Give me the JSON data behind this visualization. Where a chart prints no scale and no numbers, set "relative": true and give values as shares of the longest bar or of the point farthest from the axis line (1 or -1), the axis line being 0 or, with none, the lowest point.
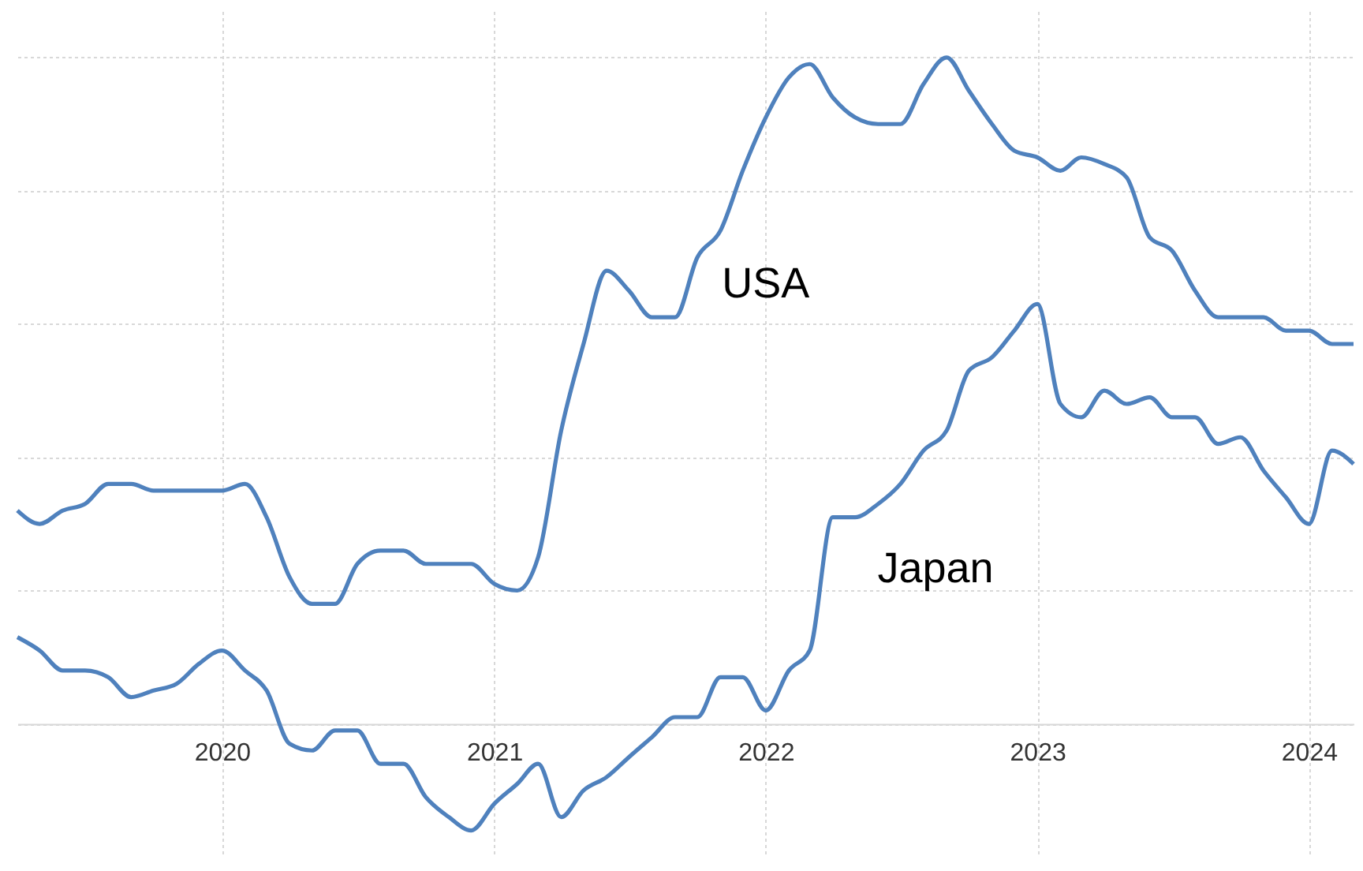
{
  "chart_data": {
    "type": "line",
    "relative": true,
    "grid": true,
    "line_style": "solid",
    "marker": "none",
    "x": [
      "2019-04",
      "2019-05",
      "2019-06",
      "2019-07",
      "2019-08",
      "2019-09",
      "2019-10",
      "2019-11",
      "2019-12",
      "2020-01",
      "2020-02",
      "2020-03",
      "2020-04",
      "2020-05",
      "2020-06",
      "2020-07",
      "2020-08",
      "2020-09",
      "2020-10",
      "2020-11",
      "2020-12",
      "2021-01",
      "2021-02",
      "2021-03",
      "2021-04",
      "2021-05",
      "2021-06",
      "2021-07",
      "2021-08",
      "2021-09",
      "2021-10",
      "2021-11",
      "2021-12",
      "2022-01",
      "2022-02",
      "2022-03",
      "2022-04",
      "2022-05",
      "2022-06",
      "2022-07",
      "2022-08",
      "2022-09",
      "2022-10",
      "2022-11",
      "2022-12",
      "2023-01",
      "2023-02",
      "2023-03",
      "2023-04",
      "2023-05",
      "2023-06",
      "2023-07",
      "2023-08",
      "2023-09",
      "2023-10",
      "2023-11",
      "2023-12",
      "2024-01",
      "2024-02",
      "2024-03"
    ],
    "xlim": [
      "2019-04",
      "2024-03"
    ],
    "xticks": [
      {
        "value": "2020",
        "label": "2020"
      },
      {
        "value": "2021",
        "label": "2021"
      },
      {
        "value": "2022",
        "label": "2022"
      },
      {
        "value": "2023",
        "label": "2023"
      },
      {
        "value": "2024",
        "label": "2024"
      }
    ],
    "series": [
      {
        "name": "USA",
        "color": "#4f81bd",
        "values": [
          0.32,
          0.3,
          0.32,
          0.33,
          0.36,
          0.36,
          0.35,
          0.35,
          0.35,
          0.35,
          0.36,
          0.31,
          0.22,
          0.18,
          0.18,
          0.24,
          0.26,
          0.26,
          0.24,
          0.24,
          0.24,
          0.21,
          0.2,
          0.25,
          0.44,
          0.57,
          0.68,
          0.65,
          0.61,
          0.61,
          0.7,
          0.74,
          0.83,
          0.91,
          0.97,
          0.99,
          0.94,
          0.91,
          0.9,
          0.9,
          0.96,
          1.0,
          0.95,
          0.9,
          0.86,
          0.85,
          0.83,
          0.85,
          0.84,
          0.82,
          0.73,
          0.71,
          0.65,
          0.61,
          0.61,
          0.61,
          0.59,
          0.59,
          0.57,
          0.57
        ]
      },
      {
        "name": "Japan",
        "color": "#4f81bd",
        "values": [
          0.13,
          0.11,
          0.08,
          0.08,
          0.07,
          0.04,
          0.05,
          0.06,
          0.09,
          0.11,
          0.08,
          0.05,
          -0.03,
          -0.04,
          -0.01,
          -0.01,
          -0.06,
          -0.06,
          -0.11,
          -0.14,
          -0.16,
          -0.12,
          -0.09,
          -0.06,
          -0.14,
          -0.1,
          -0.08,
          -0.05,
          -0.02,
          0.01,
          0.01,
          0.07,
          0.07,
          0.02,
          0.08,
          0.11,
          0.31,
          0.31,
          0.33,
          0.36,
          0.41,
          0.44,
          0.53,
          0.55,
          0.59,
          0.63,
          0.48,
          0.46,
          0.5,
          0.48,
          0.49,
          0.46,
          0.46,
          0.42,
          0.43,
          0.38,
          0.34,
          0.3,
          0.41,
          0.39
        ]
      }
    ]
  }
}
